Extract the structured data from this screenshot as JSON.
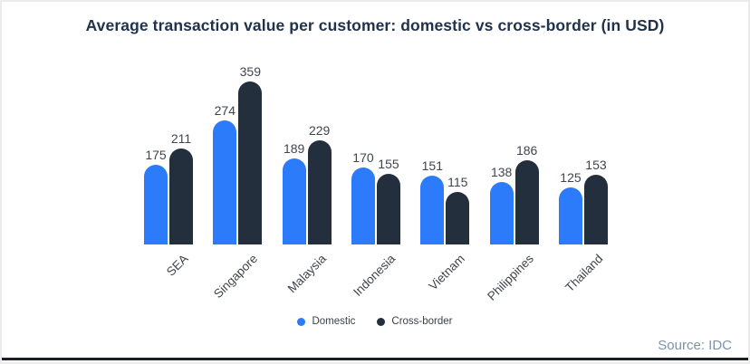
{
  "chart_data": {
    "type": "bar",
    "title": "Average transaction value per customer: domestic vs cross-border (in USD)",
    "categories": [
      "SEA",
      "Singapore",
      "Malaysia",
      "Indonesia",
      "Vietnam",
      "Philippines",
      "Thailand"
    ],
    "series": [
      {
        "name": "Domestic",
        "color": "#2b7bfa",
        "values": [
          175,
          274,
          189,
          170,
          151,
          138,
          125
        ]
      },
      {
        "name": "Cross-border",
        "color": "#242f3e",
        "values": [
          211,
          359,
          229,
          155,
          115,
          186,
          153
        ]
      }
    ],
    "xlabel": "",
    "ylabel": "",
    "ylim": [
      0,
      380
    ],
    "grid": false,
    "value_labels": true,
    "legend_position": "bottom",
    "bar_corner": "rounded-top"
  },
  "source_label": "Source: IDC",
  "colors": {
    "title_text": "#20334a",
    "value_text": "#40454d",
    "axis_text": "#3f444b",
    "source_text": "#7e93a8",
    "domestic": "#2b7bfa",
    "cross_border": "#242f3e",
    "card_border": "#ececec",
    "bottom_rule": "#1b1f26"
  }
}
